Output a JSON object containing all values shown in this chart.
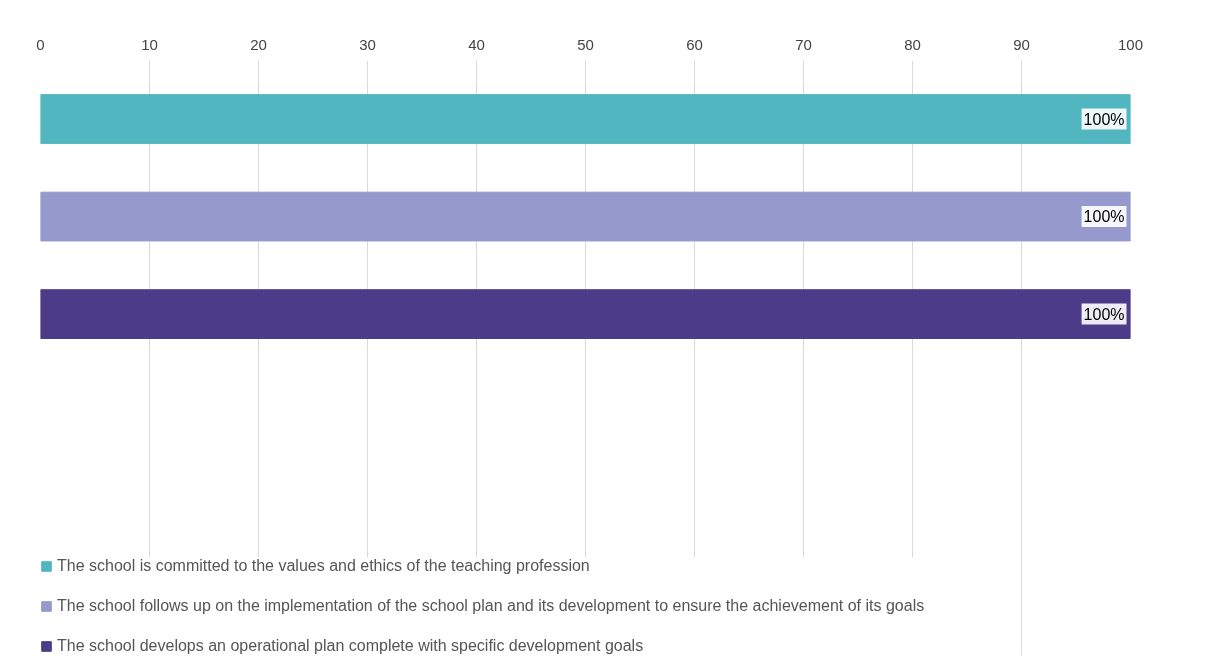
{
  "chart_data": {
    "type": "bar",
    "orientation": "horizontal",
    "categories": [
      null
    ],
    "series": [
      {
        "name": "The school is committed to the values and ethics of the teaching profession",
        "color": "#52b6c1",
        "values": [
          100
        ],
        "value_labels": [
          "100%"
        ]
      },
      {
        "name": "The school follows up on the implementation of the school plan and its development to ensure the achievement of its goals",
        "color": "#9699cb",
        "values": [
          100
        ],
        "value_labels": [
          "100%"
        ]
      },
      {
        "name": "The school develops an operational plan complete with specific development goals",
        "color": "#4b3c8a",
        "values": [
          100
        ],
        "value_labels": [
          "100%"
        ]
      }
    ],
    "xlim": [
      0,
      100
    ],
    "xticks": [
      0,
      10,
      20,
      30,
      40,
      50,
      60,
      70,
      80,
      90,
      100
    ],
    "grid": "x",
    "legend": "bottom"
  }
}
